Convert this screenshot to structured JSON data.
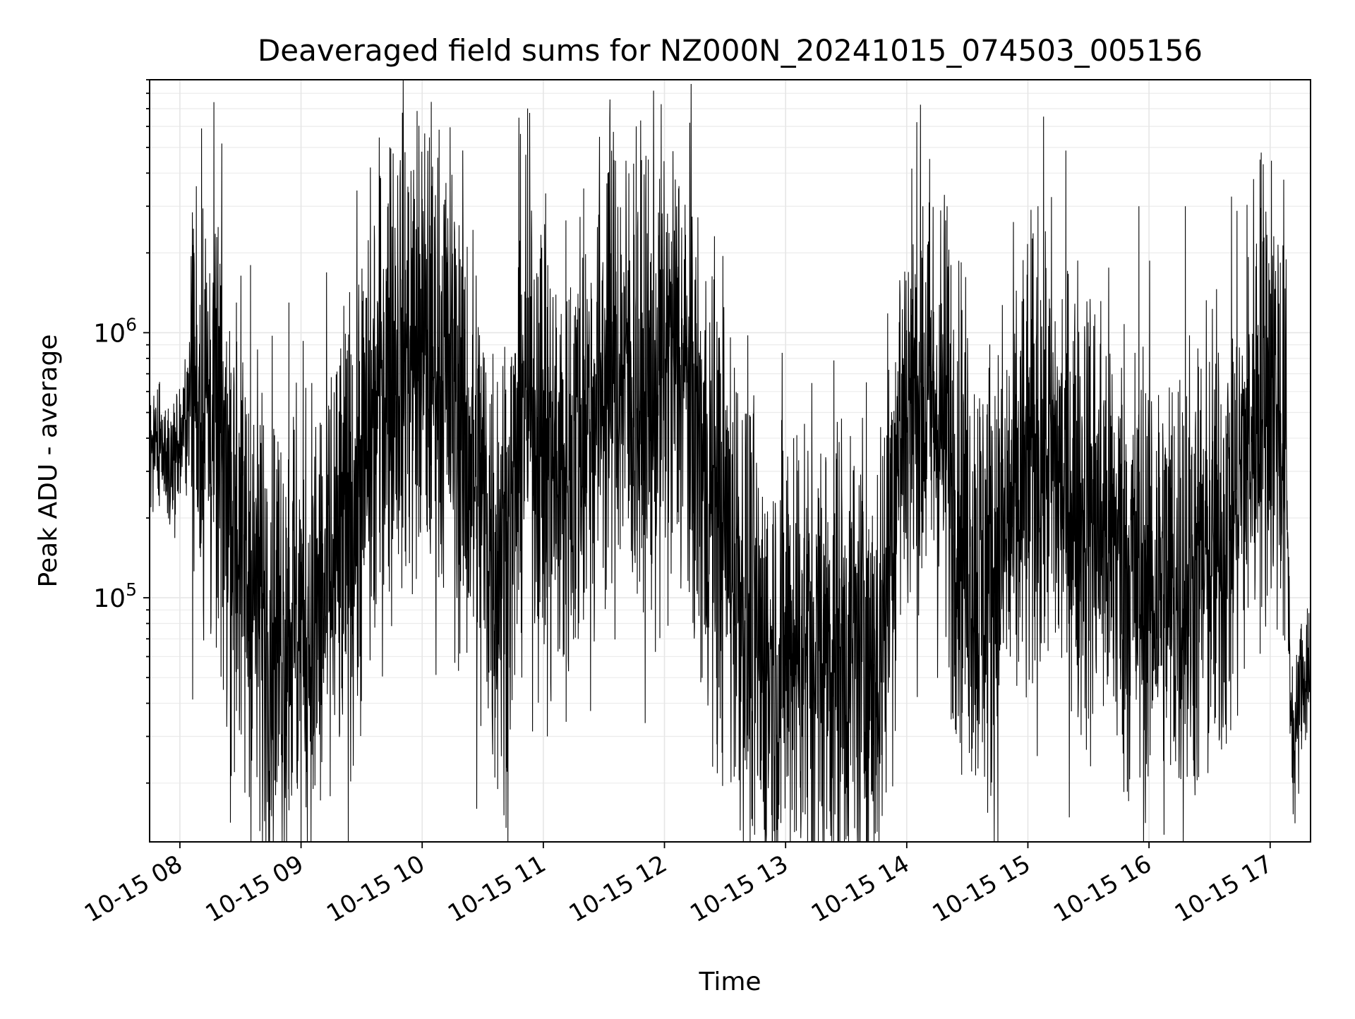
{
  "chart_data": {
    "type": "line",
    "title": "Deaveraged field sums for NZ000N_20241015_074503_005156",
    "xlabel": "Time",
    "ylabel": "Peak ADU - average",
    "yscale": "log",
    "grid": true,
    "xlim": [
      "2024-10-15 07:45",
      "2024-10-15 17:20"
    ],
    "ylim": [
      12000,
      9000000
    ],
    "x_tick_labels": [
      "10-15 08",
      "10-15 09",
      "10-15 10",
      "10-15 11",
      "10-15 12",
      "10-15 13",
      "10-15 14",
      "10-15 15",
      "10-15 16",
      "10-15 17"
    ],
    "y_tick_labels": [
      {
        "value": 100000,
        "base": "10",
        "exp": "5"
      },
      {
        "value": 1000000,
        "base": "10",
        "exp": "6"
      }
    ],
    "series": [
      {
        "color": "#000000",
        "points": [
          [
            "2024-10-15 07:45",
            400000
          ],
          [
            "2024-10-15 07:50",
            350000
          ],
          [
            "2024-10-15 07:55",
            330000
          ],
          [
            "2024-10-15 08:00",
            360000
          ],
          [
            "2024-10-15 08:05",
            580000
          ],
          [
            "2024-10-15 08:10",
            650000
          ],
          [
            "2024-10-15 08:15",
            500000
          ],
          [
            "2024-10-15 08:20",
            350000
          ],
          [
            "2024-10-15 08:25",
            250000
          ],
          [
            "2024-10-15 08:30",
            160000
          ],
          [
            "2024-10-15 08:35",
            110000
          ],
          [
            "2024-10-15 08:40",
            90000
          ],
          [
            "2024-10-15 08:45",
            80000
          ],
          [
            "2024-10-15 08:50",
            75000
          ],
          [
            "2024-10-15 08:55",
            85000
          ],
          [
            "2024-10-15 09:00",
            80000
          ],
          [
            "2024-10-15 09:05",
            75000
          ],
          [
            "2024-10-15 09:10",
            90000
          ],
          [
            "2024-10-15 09:15",
            110000
          ],
          [
            "2024-10-15 09:20",
            140000
          ],
          [
            "2024-10-15 09:25",
            200000
          ],
          [
            "2024-10-15 09:30",
            300000
          ],
          [
            "2024-10-15 09:35",
            380000
          ],
          [
            "2024-10-15 09:40",
            650000
          ],
          [
            "2024-10-15 09:45",
            800000
          ],
          [
            "2024-10-15 09:50",
            900000
          ],
          [
            "2024-10-15 09:55",
            850000
          ],
          [
            "2024-10-15 10:00",
            850000
          ],
          [
            "2024-10-15 10:05",
            800000
          ],
          [
            "2024-10-15 10:10",
            750000
          ],
          [
            "2024-10-15 10:15",
            650000
          ],
          [
            "2024-10-15 10:20",
            450000
          ],
          [
            "2024-10-15 10:25",
            300000
          ],
          [
            "2024-10-15 10:30",
            220000
          ],
          [
            "2024-10-15 10:35",
            160000
          ],
          [
            "2024-10-15 10:40",
            150000
          ],
          [
            "2024-10-15 10:45",
            200000
          ],
          [
            "2024-10-15 10:50",
            600000
          ],
          [
            "2024-10-15 10:55",
            500000
          ],
          [
            "2024-10-15 11:00",
            400000
          ],
          [
            "2024-10-15 11:05",
            300000
          ],
          [
            "2024-10-15 11:10",
            280000
          ],
          [
            "2024-10-15 11:15",
            350000
          ],
          [
            "2024-10-15 11:20",
            450000
          ],
          [
            "2024-10-15 11:25",
            500000
          ],
          [
            "2024-10-15 11:30",
            700000
          ],
          [
            "2024-10-15 11:35",
            800000
          ],
          [
            "2024-10-15 11:40",
            700000
          ],
          [
            "2024-10-15 11:45",
            600000
          ],
          [
            "2024-10-15 11:50",
            500000
          ],
          [
            "2024-10-15 11:55",
            600000
          ],
          [
            "2024-10-15 12:00",
            700000
          ],
          [
            "2024-10-15 12:05",
            800000
          ],
          [
            "2024-10-15 12:10",
            700000
          ],
          [
            "2024-10-15 12:15",
            450000
          ],
          [
            "2024-10-15 12:20",
            280000
          ],
          [
            "2024-10-15 12:25",
            230000
          ],
          [
            "2024-10-15 12:30",
            180000
          ],
          [
            "2024-10-15 12:35",
            140000
          ],
          [
            "2024-10-15 12:40",
            90000
          ],
          [
            "2024-10-15 12:45",
            65000
          ],
          [
            "2024-10-15 12:50",
            55000
          ],
          [
            "2024-10-15 12:55",
            55000
          ],
          [
            "2024-10-15 13:00",
            65000
          ],
          [
            "2024-10-15 13:05",
            70000
          ],
          [
            "2024-10-15 13:10",
            65000
          ],
          [
            "2024-10-15 13:15",
            60000
          ],
          [
            "2024-10-15 13:20",
            65000
          ],
          [
            "2024-10-15 13:25",
            65000
          ],
          [
            "2024-10-15 13:30",
            60000
          ],
          [
            "2024-10-15 13:35",
            60000
          ],
          [
            "2024-10-15 13:40",
            55000
          ],
          [
            "2024-10-15 13:45",
            50000
          ],
          [
            "2024-10-15 13:50",
            120000
          ],
          [
            "2024-10-15 13:55",
            350000
          ],
          [
            "2024-10-15 14:00",
            550000
          ],
          [
            "2024-10-15 14:05",
            600000
          ],
          [
            "2024-10-15 14:10",
            550000
          ],
          [
            "2024-10-15 14:15",
            500000
          ],
          [
            "2024-10-15 14:20",
            400000
          ],
          [
            "2024-10-15 14:25",
            250000
          ],
          [
            "2024-10-15 14:30",
            170000
          ],
          [
            "2024-10-15 14:35",
            120000
          ],
          [
            "2024-10-15 14:40",
            120000
          ],
          [
            "2024-10-15 14:45",
            140000
          ],
          [
            "2024-10-15 14:50",
            180000
          ],
          [
            "2024-10-15 14:55",
            220000
          ],
          [
            "2024-10-15 15:00",
            280000
          ],
          [
            "2024-10-15 15:05",
            350000
          ],
          [
            "2024-10-15 15:10",
            350000
          ],
          [
            "2024-10-15 15:15",
            280000
          ],
          [
            "2024-10-15 15:20",
            250000
          ],
          [
            "2024-10-15 15:25",
            230000
          ],
          [
            "2024-10-15 15:30",
            220000
          ],
          [
            "2024-10-15 15:35",
            200000
          ],
          [
            "2024-10-15 15:40",
            180000
          ],
          [
            "2024-10-15 15:45",
            150000
          ],
          [
            "2024-10-15 15:50",
            130000
          ],
          [
            "2024-10-15 15:55",
            110000
          ],
          [
            "2024-10-15 16:00",
            110000
          ],
          [
            "2024-10-15 16:05",
            120000
          ],
          [
            "2024-10-15 16:10",
            110000
          ],
          [
            "2024-10-15 16:15",
            110000
          ],
          [
            "2024-10-15 16:20",
            120000
          ],
          [
            "2024-10-15 16:25",
            130000
          ],
          [
            "2024-10-15 16:30",
            140000
          ],
          [
            "2024-10-15 16:35",
            160000
          ],
          [
            "2024-10-15 16:40",
            200000
          ],
          [
            "2024-10-15 16:45",
            280000
          ],
          [
            "2024-10-15 16:50",
            400000
          ],
          [
            "2024-10-15 16:55",
            600000
          ],
          [
            "2024-10-15 17:00",
            700000
          ],
          [
            "2024-10-15 17:05",
            500000
          ],
          [
            "2024-10-15 17:08",
            300000
          ],
          [
            "2024-10-15 17:10",
            45000
          ],
          [
            "2024-10-15 17:12",
            25000
          ],
          [
            "2024-10-15 17:15",
            45000
          ],
          [
            "2024-10-15 17:20",
            60000
          ]
        ],
        "peaks": [
          [
            "2024-10-15 08:07",
            2000000
          ],
          [
            "2024-10-15 08:28",
            1300000
          ],
          [
            "2024-10-15 08:35",
            1800000
          ],
          [
            "2024-10-15 08:54",
            1300000
          ],
          [
            "2024-10-15 09:38",
            1300000
          ],
          [
            "2024-10-15 09:44",
            5000000
          ],
          [
            "2024-10-15 10:00",
            3200000
          ],
          [
            "2024-10-15 10:48",
            4500000
          ],
          [
            "2024-10-15 11:20",
            3500000
          ],
          [
            "2024-10-15 11:32",
            4000000
          ],
          [
            "2024-10-15 11:46",
            6000000
          ],
          [
            "2024-10-15 11:52",
            4500000
          ],
          [
            "2024-10-15 12:07",
            3500000
          ],
          [
            "2024-10-15 12:26",
            1100000
          ],
          [
            "2024-10-15 12:44",
            450000
          ],
          [
            "2024-10-15 13:04",
            400000
          ],
          [
            "2024-10-15 13:40",
            650000
          ],
          [
            "2024-10-15 14:08",
            3000000
          ],
          [
            "2024-10-15 14:20",
            3000000
          ],
          [
            "2024-10-15 15:05",
            3000000
          ],
          [
            "2024-10-15 15:55",
            3000000
          ],
          [
            "2024-10-15 16:18",
            3000000
          ],
          [
            "2024-10-15 16:55",
            4500000
          ]
        ],
        "troughs": [
          [
            "2024-10-15 08:27",
            22000
          ],
          [
            "2024-10-15 08:58",
            20000
          ],
          [
            "2024-10-15 09:06",
            19000
          ],
          [
            "2024-10-15 10:27",
            16000
          ],
          [
            "2024-10-15 10:36",
            21000
          ],
          [
            "2024-10-15 11:02",
            30000
          ],
          [
            "2024-10-15 12:26",
            28000
          ],
          [
            "2024-10-15 12:49",
            22000
          ],
          [
            "2024-10-15 13:17",
            19500
          ],
          [
            "2024-10-15 14:23",
            35000
          ],
          [
            "2024-10-15 15:30",
            35000
          ],
          [
            "2024-10-15 17:12",
            20000
          ]
        ]
      }
    ]
  }
}
